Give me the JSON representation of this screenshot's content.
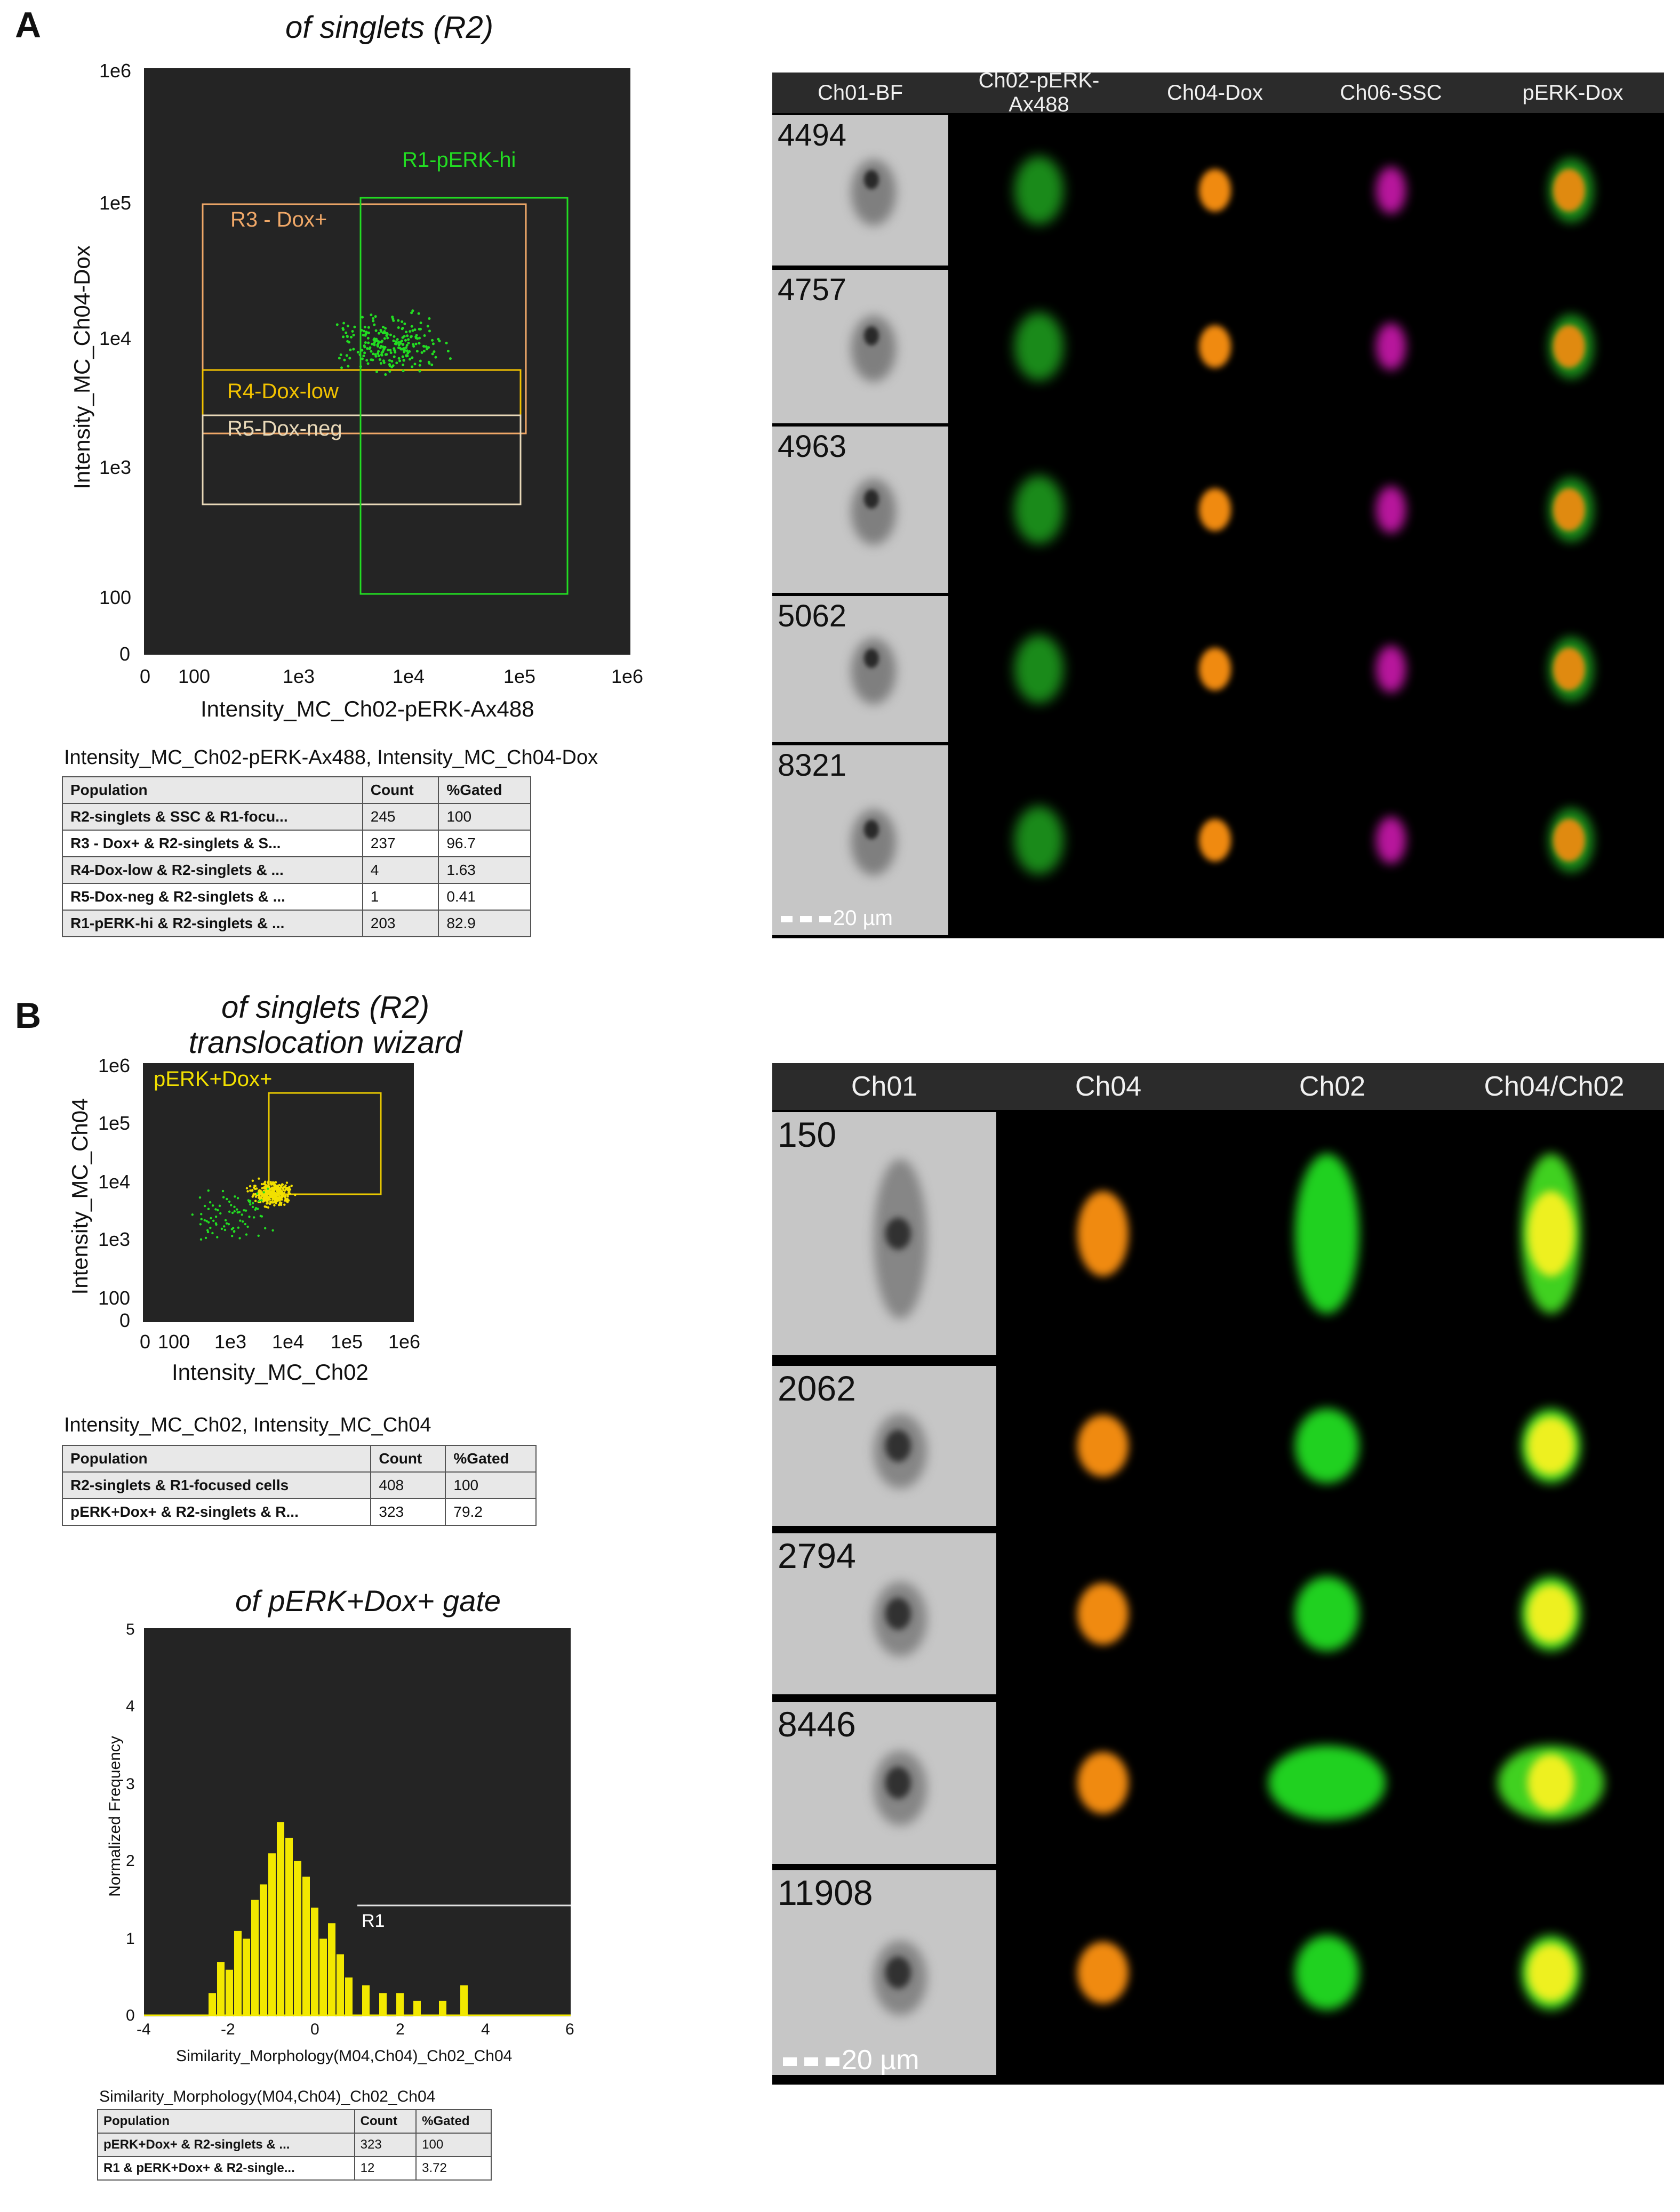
{
  "panels": {
    "A": {
      "letter": "A",
      "plot_title": "of singlets (R2)",
      "xlabel": "Intensity_MC_Ch02-pERK-Ax488",
      "ylabel": "Intensity_MC_Ch04-Dox",
      "x_ticks": [
        "0",
        "100",
        "1e3",
        "1e4",
        "1e5",
        "1e6"
      ],
      "y_ticks": [
        "1e6",
        "1e5",
        "1e4",
        "1e3",
        "100",
        "0"
      ],
      "gates": [
        {
          "label": "R1-pERK-hi",
          "color": "#22dd22"
        },
        {
          "label": "R3 - Dox+",
          "color": "#f0a868"
        },
        {
          "label": "R4-Dox-low",
          "color": "#f2c200"
        },
        {
          "label": "R5-Dox-neg",
          "color": "#e8d8b8"
        }
      ],
      "table_title": "Intensity_MC_Ch02-pERK-Ax488, Intensity_MC_Ch04-Dox",
      "table_headers": [
        "Population",
        "Count",
        "%Gated"
      ],
      "table_rows": [
        [
          "R2-singlets & SSC & R1-focu...",
          "245",
          "100"
        ],
        [
          "R3 - Dox+ & R2-singlets & S...",
          "237",
          "96.7"
        ],
        [
          "R4-Dox-low & R2-singlets & ...",
          "4",
          "1.63"
        ],
        [
          "R5-Dox-neg & R2-singlets & ...",
          "1",
          "0.41"
        ],
        [
          "R1-pERK-hi & R2-singlets & ...",
          "203",
          "82.9"
        ]
      ],
      "gallery_headers": [
        "Ch01-BF",
        "Ch02-pERK-Ax488",
        "Ch04-Dox",
        "Ch06-SSC",
        "pERK-Dox"
      ],
      "gallery_rows": [
        "4494",
        "4757",
        "4963",
        "5062",
        "8321"
      ],
      "scale_label": "20 µm"
    },
    "B": {
      "letter": "B",
      "plot_title_1": "of singlets (R2)",
      "plot_title_2": "translocation wizard",
      "xlabel": "Intensity_MC_Ch02",
      "ylabel": "Intensity_MC_Ch04",
      "x_ticks": [
        "0",
        "100",
        "1e3",
        "1e4",
        "1e5",
        "1e6"
      ],
      "y_ticks": [
        "1e6",
        "1e5",
        "1e4",
        "1e3",
        "100",
        "0"
      ],
      "gate_label": "pERK+Dox+",
      "gate_color": "#f2e000",
      "table_title": "Intensity_MC_Ch02, Intensity_MC_Ch04",
      "table_headers": [
        "Population",
        "Count",
        "%Gated"
      ],
      "table_rows": [
        [
          "R2-singlets & R1-focused cells",
          "408",
          "100"
        ],
        [
          "pERK+Dox+ & R2-singlets & R...",
          "323",
          "79.2"
        ]
      ],
      "hist_title": "of pERK+Dox+ gate",
      "hist_xlabel": "Similarity_Morphology(M04,Ch04)_Ch02_Ch04",
      "hist_ylabel": "Normalized Frequency",
      "hist_x_ticks": [
        "-4",
        "-2",
        "0",
        "2",
        "4",
        "6"
      ],
      "hist_y_ticks": [
        "5",
        "4",
        "3",
        "2",
        "1",
        "0"
      ],
      "hist_gate_label": "R1",
      "table2_title": "Similarity_Morphology(M04,Ch04)_Ch02_Ch04",
      "table2_headers": [
        "Population",
        "Count",
        "%Gated"
      ],
      "table2_rows": [
        [
          "pERK+Dox+ & R2-singlets & ...",
          "323",
          "100"
        ],
        [
          "R1 & pERK+Dox+ & R2-single...",
          "12",
          "3.72"
        ]
      ],
      "gallery_headers": [
        "Ch01",
        "Ch04",
        "Ch02",
        "Ch04/Ch02"
      ],
      "gallery_rows": [
        "150",
        "2062",
        "2794",
        "8446",
        "11908"
      ],
      "scale_label": "20 µm"
    }
  },
  "chart_data": [
    {
      "type": "scatter",
      "title": "of singlets (R2)",
      "xlabel": "Intensity_MC_Ch02-pERK-Ax488",
      "ylabel": "Intensity_MC_Ch04-Dox",
      "scale": "log",
      "xlim": [
        0,
        1000000
      ],
      "ylim": [
        0,
        1000000
      ],
      "series": [
        {
          "color": "#22dd22",
          "x_range": [
            3000,
            60000
          ],
          "y_range": [
            8000,
            40000
          ],
          "count": 237
        }
      ]
    },
    {
      "type": "scatter",
      "title": "of singlets (R2) translocation wizard",
      "xlabel": "Intensity_MC_Ch02",
      "ylabel": "Intensity_MC_Ch04",
      "scale": "log",
      "xlim": [
        0,
        1000000
      ],
      "ylim": [
        0,
        1000000
      ],
      "series": [
        {
          "color": "#f2e000",
          "x_range": [
            4000,
            40000
          ],
          "y_range": [
            7000,
            30000
          ],
          "count": 323
        },
        {
          "color": "#22dd22",
          "x_range": [
            200,
            30000
          ],
          "y_range": [
            1000,
            30000
          ],
          "count": 85
        }
      ]
    },
    {
      "type": "bar",
      "title": "of pERK+Dox+ gate",
      "xlabel": "Similarity_Morphology(M04,Ch04)_Ch02_Ch04",
      "ylabel": "Normalized Frequency",
      "xlim": [
        -4,
        6
      ],
      "ylim": [
        0,
        5
      ],
      "x": [
        -2.4,
        -2.2,
        -2.0,
        -1.8,
        -1.6,
        -1.4,
        -1.2,
        -1.0,
        -0.8,
        -0.6,
        -0.4,
        -0.2,
        0.0,
        0.2,
        0.4,
        0.6,
        0.8,
        1.2,
        1.6,
        2.0,
        2.4,
        3.0,
        3.5
      ],
      "values": [
        0.3,
        0.7,
        0.6,
        1.1,
        1.0,
        1.5,
        1.7,
        2.1,
        2.5,
        2.3,
        2.0,
        1.8,
        1.4,
        1.0,
        1.2,
        0.8,
        0.5,
        0.4,
        0.3,
        0.3,
        0.2,
        0.2,
        0.4
      ]
    }
  ]
}
